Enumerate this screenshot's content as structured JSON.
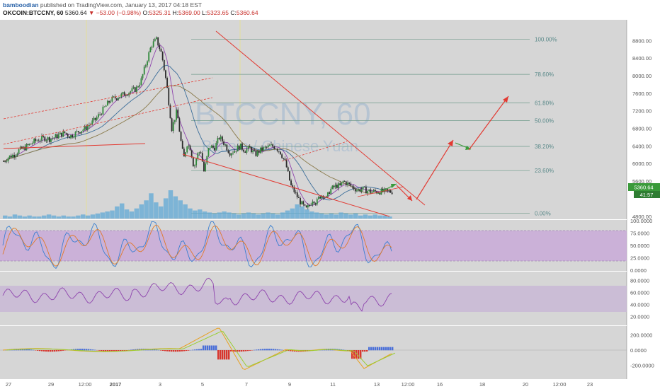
{
  "header": {
    "author": "bamboodian",
    "publish_text": "published on TradingView.com, January 13, 2017 04:18 EST",
    "symbol": "OKCOIN:BTCCNY, 60",
    "last": "5360.64",
    "change": "▼ −53.00 (−0.98%)",
    "open_label": "O:",
    "open": "5325.31",
    "high_label": "H:",
    "high": "5369.00",
    "low_label": "L:",
    "low": "5323.65",
    "close_label": "C:",
    "close": "5360.64"
  },
  "watermark": {
    "title": "BTCCNY, 60",
    "subtitle": "Bitcoin / Chinese Yuan"
  },
  "colors": {
    "background": "#d6d6d6",
    "up_candle": "#2f8a3a",
    "down_candle": "#2b2b2b",
    "trendline": "#e23a32",
    "fib_line": "#6e9a8a",
    "stoch_band": "#c8a8d8",
    "rsi_band": "#c8b6d6",
    "volume": "#5fa8d6",
    "macd_pos": "#4a6fd8",
    "macd_neg": "#d8362e",
    "price_tag": "#3a9a3a"
  },
  "chart_data": [
    {
      "type": "line",
      "panel": "price",
      "y_ticks": [
        "8800.00",
        "8400.00",
        "8000.00",
        "7600.00",
        "7200.00",
        "6800.00",
        "6400.00",
        "6000.00",
        "5600.00",
        "4800.00"
      ],
      "ylim": [
        4700,
        8950
      ],
      "fib_levels": [
        {
          "label": "100.00%",
          "value": 8830
        },
        {
          "label": "78.60%",
          "value": 8030
        },
        {
          "label": "61.80%",
          "value": 7380
        },
        {
          "label": "50.00%",
          "value": 6980
        },
        {
          "label": "38.20%",
          "value": 6390
        },
        {
          "label": "23.60%",
          "value": 5840
        },
        {
          "label": "0.00%",
          "value": 4870
        }
      ],
      "last_price_tag": "5360.64",
      "countdown_tag": "41:57",
      "x": [
        0,
        3,
        6,
        9,
        12,
        15,
        18,
        21,
        24,
        27,
        30,
        33,
        36,
        39,
        42,
        45,
        48,
        51,
        54,
        57,
        60,
        63,
        66,
        69,
        72,
        75,
        78,
        81,
        84,
        87,
        90,
        93,
        96,
        99,
        102,
        104,
        106,
        108,
        110,
        112,
        114,
        116,
        118,
        121,
        124,
        127,
        130,
        133,
        136,
        139,
        142,
        145,
        148,
        151,
        154,
        157,
        160,
        163,
        166,
        169,
        172,
        175,
        178,
        180,
        182,
        184,
        186,
        188,
        190,
        192,
        194,
        196,
        198,
        200,
        202,
        204,
        206,
        208,
        211,
        214,
        217,
        220,
        223,
        226,
        229
      ],
      "close": [
        6050,
        6150,
        6200,
        6300,
        6350,
        6420,
        6500,
        6550,
        6580,
        6560,
        6600,
        6650,
        6700,
        6620,
        6680,
        6750,
        6800,
        6900,
        7000,
        7150,
        7300,
        7450,
        7500,
        7550,
        7600,
        7650,
        7700,
        7900,
        8300,
        8700,
        8820,
        8500,
        7800,
        6800,
        7200,
        6600,
        6100,
        6450,
        6350,
        5900,
        6200,
        6300,
        5800,
        6400,
        6350,
        6600,
        6450,
        6250,
        6300,
        6400,
        6300,
        6350,
        6200,
        6300,
        6350,
        6400,
        6380,
        6250,
        6000,
        5500,
        5300,
        5100,
        4950,
        5050,
        5200,
        5100,
        5250,
        5300,
        5200,
        5400,
        5450,
        5500,
        5480,
        5600,
        5550,
        5500,
        5450,
        5400,
        5420,
        5380,
        5360,
        5361,
        5365,
        5362,
        5361
      ],
      "candle_x_range": [
        0,
        229
      ]
    },
    {
      "type": "bar",
      "panel": "volume",
      "values": [
        3,
        2,
        4,
        3,
        2,
        3,
        2,
        2,
        3,
        4,
        3,
        2,
        3,
        2,
        2,
        3,
        4,
        3,
        4,
        5,
        6,
        7,
        8,
        12,
        15,
        9,
        7,
        10,
        14,
        18,
        25,
        16,
        12,
        20,
        28,
        22,
        18,
        14,
        10,
        8,
        9,
        7,
        6,
        5,
        6,
        7,
        6,
        5,
        4,
        5,
        6,
        5,
        4,
        5,
        6,
        5,
        4,
        6,
        8,
        10,
        14,
        12,
        9,
        7,
        6,
        5,
        4,
        5,
        4,
        6,
        5,
        4,
        5,
        3,
        4,
        3,
        4,
        3,
        3,
        2
      ]
    },
    {
      "type": "line",
      "panel": "stochastic",
      "y_ticks": [
        "100.0000",
        "75.0000",
        "50.0000",
        "25.0000",
        "0.0000"
      ],
      "ylim": [
        0,
        100
      ],
      "band": [
        20,
        80
      ]
    },
    {
      "type": "line",
      "panel": "rsi",
      "y_ticks": [
        "80.0000",
        "60.0000",
        "40.0000",
        "20.0000"
      ],
      "ylim": [
        10,
        90
      ],
      "band": [
        30,
        70
      ]
    },
    {
      "type": "bar",
      "panel": "macd",
      "y_ticks": [
        "200.0000",
        "0.0000",
        "-200.0000"
      ],
      "ylim": [
        -350,
        350
      ]
    }
  ],
  "x_axis": {
    "ticks": [
      {
        "label": "27",
        "pos": 12
      },
      {
        "label": "29",
        "pos": 72
      },
      {
        "label": "12:00",
        "pos": 120
      },
      {
        "label": "2017",
        "pos": 163,
        "bold": true
      },
      {
        "label": "3",
        "pos": 226
      },
      {
        "label": "5",
        "pos": 286
      },
      {
        "label": "7",
        "pos": 348
      },
      {
        "label": "9",
        "pos": 409
      },
      {
        "label": "11",
        "pos": 470
      },
      {
        "label": "13",
        "pos": 532
      },
      {
        "label": "12:00",
        "pos": 576
      },
      {
        "label": "16",
        "pos": 621
      },
      {
        "label": "18",
        "pos": 681
      },
      {
        "label": "20",
        "pos": 742
      },
      {
        "label": "12:00",
        "pos": 790
      },
      {
        "label": "23",
        "pos": 833
      }
    ]
  }
}
